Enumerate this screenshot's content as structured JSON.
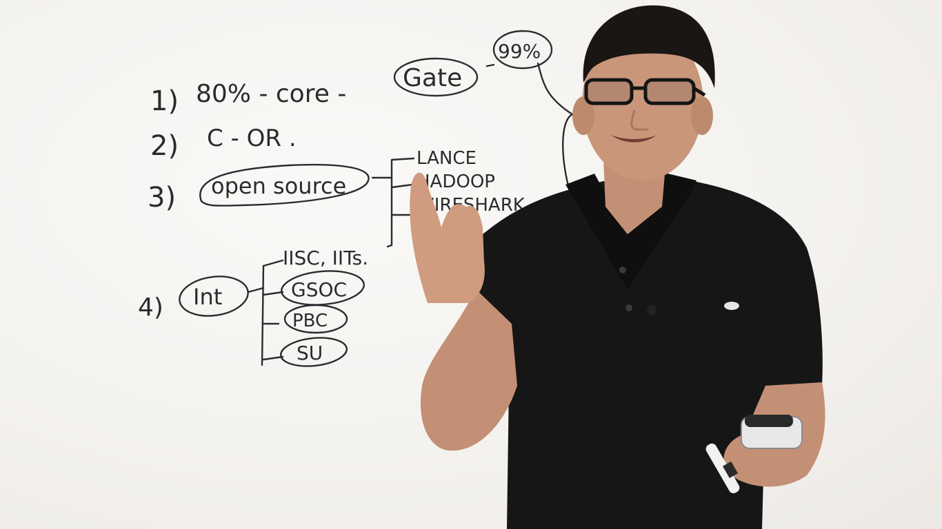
{
  "whiteboard": {
    "item1": {
      "number": "1)",
      "text_a": "80% - core -",
      "gate": "Gate",
      "percent": "99%"
    },
    "item2": {
      "number": "2)",
      "text": "C -   OR ."
    },
    "item3": {
      "number": "3)",
      "open_source": "open source",
      "branches": [
        "LANCE",
        "HADOOP",
        "WIRESHARK",
        "..."
      ]
    },
    "item4": {
      "number": "4)",
      "int": "Int",
      "branches": [
        "IISC, IITs.",
        "GSOC",
        "PBC",
        "SU"
      ]
    }
  },
  "colors": {
    "board": "#f4f2ef",
    "ink": "#2b2b2e",
    "shirt": "#161616",
    "skin": "#c9967a",
    "hair": "#1a1614"
  }
}
